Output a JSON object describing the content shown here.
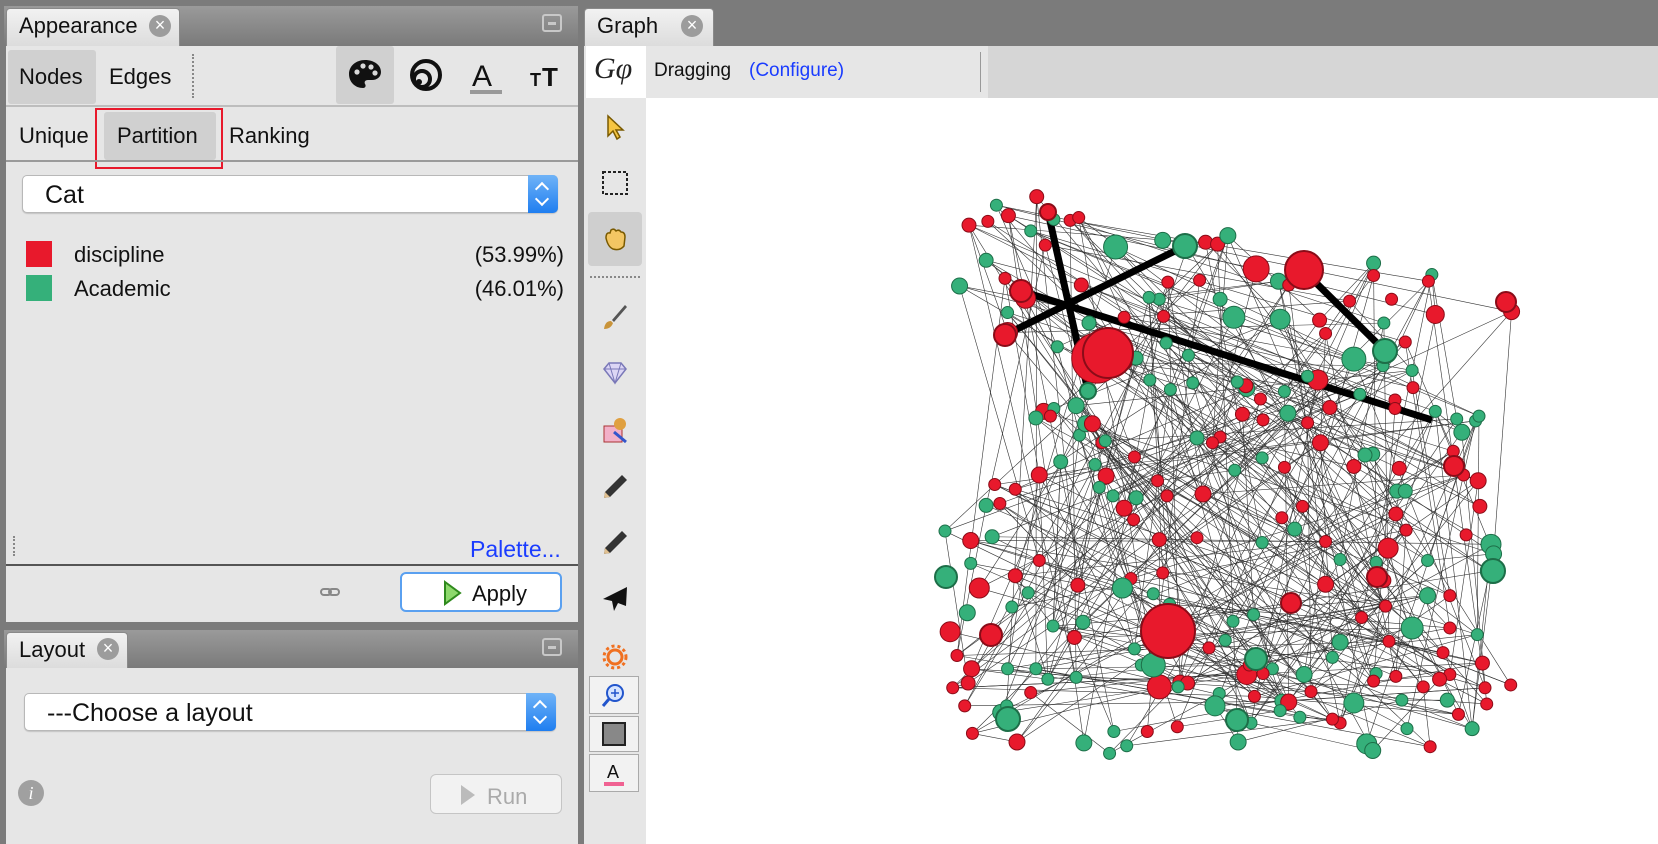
{
  "appearance": {
    "tab_title": "Appearance",
    "close_glyph": "×",
    "element_tabs": [
      "Nodes",
      "Edges"
    ],
    "mode_tabs": [
      "Unique",
      "Partition",
      "Ranking"
    ],
    "attribute_value": "Cat",
    "legend": [
      {
        "label": "discipline",
        "percent": "(53.99%)",
        "color": "#e8192c"
      },
      {
        "label": "Academic",
        "percent": "(46.01%)",
        "color": "#35b07a"
      }
    ],
    "palette_link": "Palette...",
    "apply_label": "Apply",
    "icons": [
      "palette-icon",
      "size-icon",
      "label-color-icon",
      "label-size-icon",
      "link-icon"
    ]
  },
  "layout": {
    "tab_title": "Layout",
    "close_glyph": "×",
    "select_value": "---Choose a layout",
    "info_glyph": "i",
    "run_label": "Run"
  },
  "graph": {
    "tab_title": "Graph",
    "close_glyph": "×",
    "mode_label": "Dragging",
    "configure_link": "(Configure)",
    "logo_text": "Gφ",
    "tools": [
      "select-arrow-icon",
      "rectangle-select-icon",
      "drag-hand-icon",
      "brush-icon",
      "diamond-icon",
      "painter-icon",
      "pencil-icon",
      "pencil-alt-icon",
      "plane-icon",
      "sun-icon",
      "zoom-center-icon",
      "background-color-icon",
      "label-color-icon"
    ],
    "colors": {
      "red": "#e8192c",
      "green": "#35b07a",
      "red_stroke": "#8a0c18",
      "green_stroke": "#1d6e48"
    }
  }
}
